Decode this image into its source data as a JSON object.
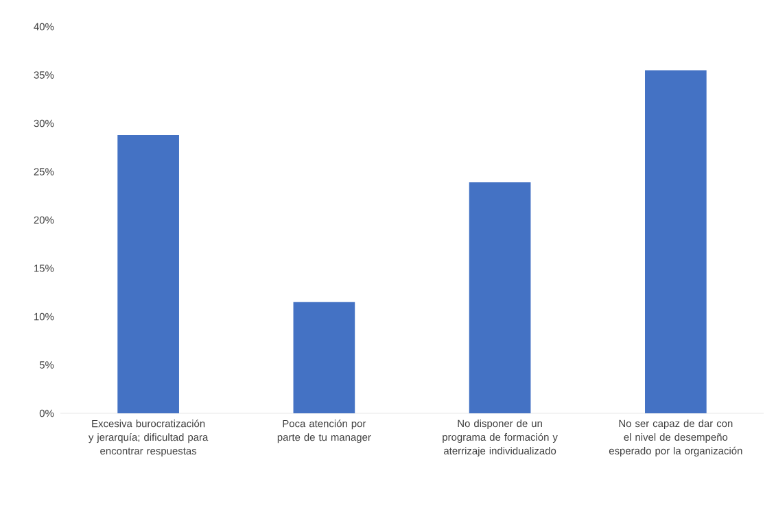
{
  "chart_data": {
    "type": "bar",
    "categories": [
      "Excesiva burocratización y jerarquía; dificultad para encontrar respuestas",
      "Poca atención por parte de tu manager",
      "No disponer de un programa de formación y aterrizaje individualizado",
      "No ser capaz de dar con el nivel de desempeño esperado por la organización"
    ],
    "values": [
      28.8,
      11.5,
      23.9,
      35.5
    ],
    "color": "#4472c4",
    "ylim": [
      0,
      40
    ],
    "yticks": [
      {
        "value": 0,
        "label": "0%"
      },
      {
        "value": 5,
        "label": "5%"
      },
      {
        "value": 10,
        "label": "10%"
      },
      {
        "value": 15,
        "label": "15%"
      },
      {
        "value": 20,
        "label": "20%"
      },
      {
        "value": 25,
        "label": "25%"
      },
      {
        "value": 30,
        "label": "30%"
      },
      {
        "value": 35,
        "label": "35%"
      },
      {
        "value": 40,
        "label": "40%"
      }
    ]
  }
}
